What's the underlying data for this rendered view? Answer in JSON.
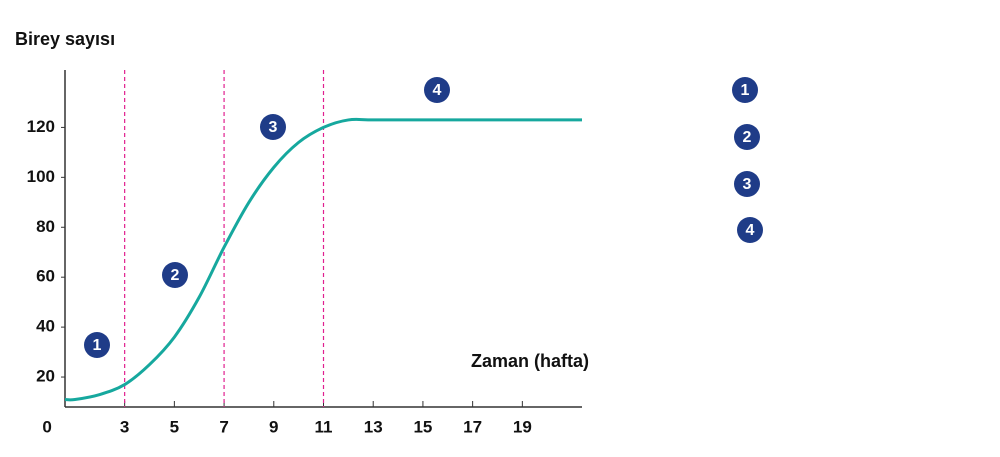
{
  "chart_data": {
    "type": "line",
    "y_label": "Birey sayısı",
    "x_label": "Zaman (hafta)",
    "x": [
      0.6,
      1,
      2,
      3,
      4,
      5,
      6,
      7,
      8,
      9,
      10,
      11,
      12,
      13,
      15,
      17,
      19,
      21.4
    ],
    "series": [
      {
        "color": "#16a89e",
        "values": [
          11,
          11,
          13,
          17,
          25,
          36,
          52,
          72,
          90,
          104,
          114,
          120,
          123,
          123,
          123,
          123,
          123,
          123
        ]
      }
    ],
    "xlim": [
      0.6,
      21.4
    ],
    "xticks": [
      0,
      3,
      5,
      7,
      9,
      11,
      13,
      15,
      17,
      19
    ],
    "ylim": [
      8,
      143
    ],
    "yticks": [
      20,
      40,
      60,
      80,
      100,
      120
    ],
    "phase_boundaries": [
      3,
      7,
      11
    ],
    "boundary_color": "#e0208f",
    "marker_color": "#1f3c88",
    "phases": [
      "1",
      "2",
      "3",
      "4"
    ]
  }
}
